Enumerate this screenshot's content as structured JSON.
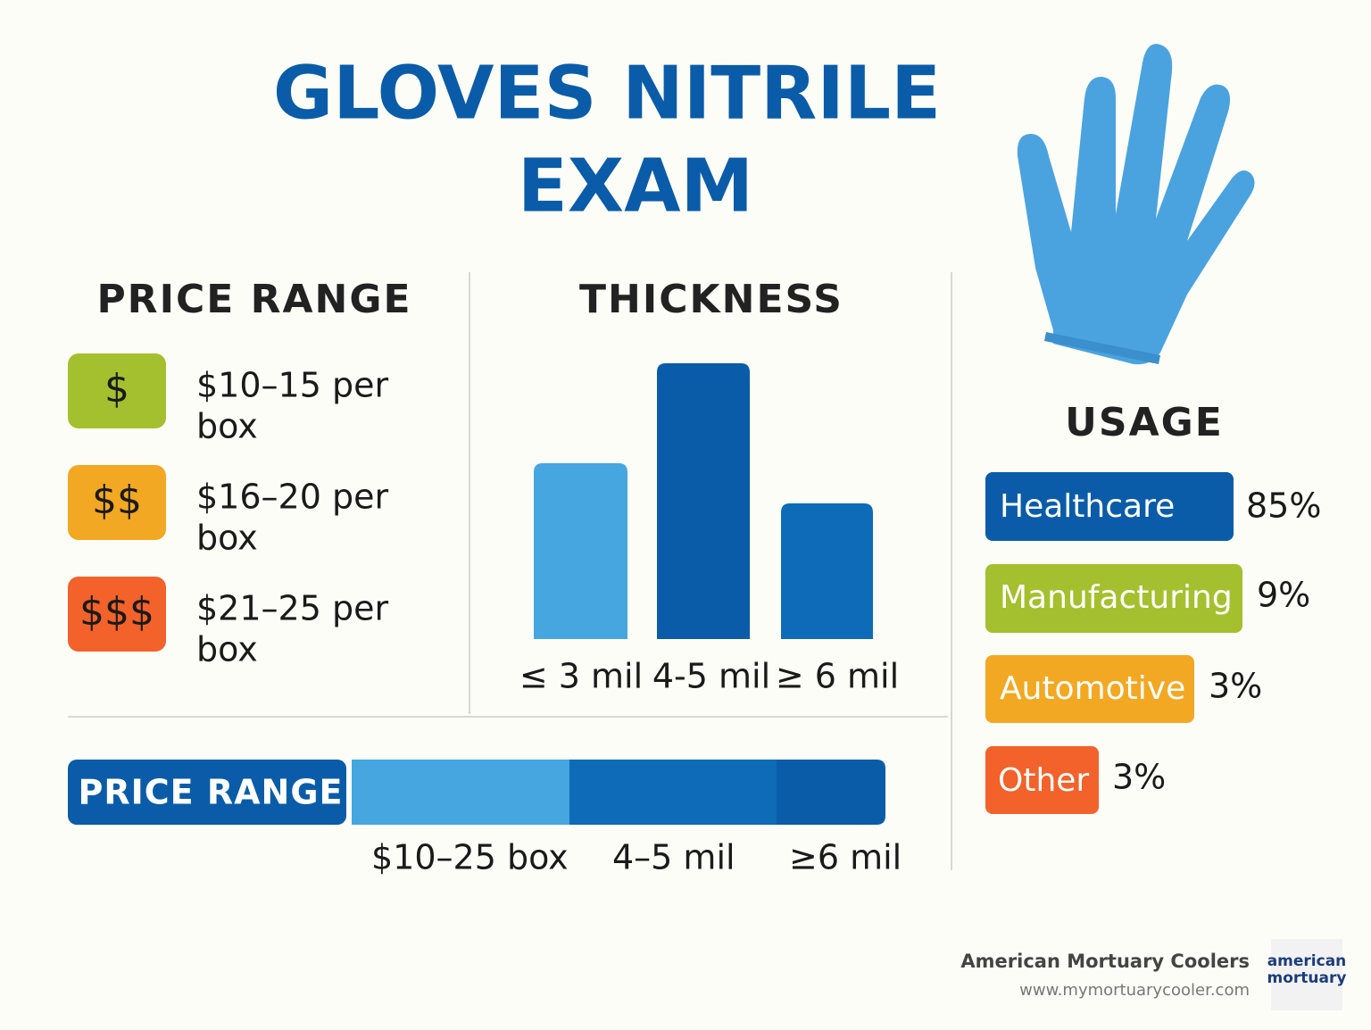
{
  "title": {
    "line1": "GLOVES NITRILE",
    "line2": "EXAM"
  },
  "price_range": {
    "heading": "PRICE RANGE",
    "items": [
      {
        "symbol": "$",
        "line1": "$10–15 per",
        "line2": "box"
      },
      {
        "symbol": "$$",
        "line1": "$16–20 per",
        "line2": "box"
      },
      {
        "symbol": "$$$",
        "line1": "$21–25 per",
        "line2": "box"
      }
    ]
  },
  "thickness": {
    "heading": "THICKNESS",
    "labels": [
      "≤ 3 mil",
      "4-5 mil",
      "≥ 6 mil"
    ]
  },
  "summary": {
    "heading": "PRICE RANGE",
    "labels": [
      "$10–25 box",
      "4–5 mil",
      "≥6 mil"
    ]
  },
  "usage": {
    "heading": "USAGE",
    "items": [
      {
        "name": "Healthcare",
        "percent": "85%"
      },
      {
        "name": "Manufacturing",
        "percent": "9%"
      },
      {
        "name": "Automotive",
        "percent": "3%"
      },
      {
        "name": "Other",
        "percent": "3%"
      }
    ]
  },
  "footer": {
    "company": "American Mortuary Coolers",
    "url": "www.mymortuarycooler.com",
    "logo_line1": "american",
    "logo_line2": "mortuary"
  }
}
